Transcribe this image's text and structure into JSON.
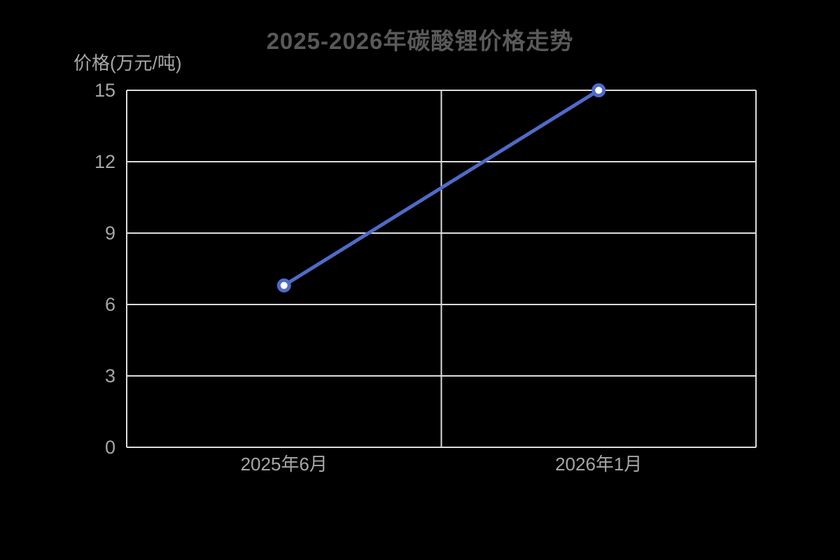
{
  "chart_data": {
    "type": "line",
    "title": "2025-2026年碳酸锂价格走势",
    "ylabel": "价格(万元/吨)",
    "xlabel": "",
    "categories": [
      "2025年6月",
      "2026年1月"
    ],
    "values": [
      6.8,
      15
    ],
    "ylim": [
      0,
      15
    ],
    "yticks": [
      0,
      3,
      6,
      9,
      12,
      15
    ],
    "grid": true,
    "legend": "none",
    "colors": {
      "background": "#000000",
      "title": "#595959",
      "axis_label": "#a6a6a6",
      "grid_line": "#dcdcdc",
      "line": "#4f6bc8",
      "marker_fill": "#ffffff"
    }
  }
}
